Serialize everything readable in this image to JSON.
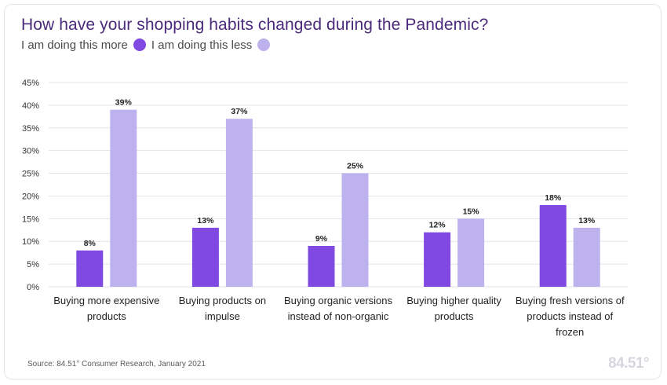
{
  "title": "How have your shopping habits changed during the Pandemic?",
  "legend": {
    "more_label": "I am doing this more",
    "less_label": "I am doing this less"
  },
  "colors": {
    "more": "#8049e2",
    "less": "#bdb2ed",
    "title": "#4b2a7b",
    "grid": "#e3e3e8"
  },
  "source": "Source: 84.51° Consumer Research, January 2021",
  "logo": "84.51°",
  "chart_data": {
    "type": "bar",
    "title": "How have your shopping habits changed during the Pandemic?",
    "categories": [
      [
        "Buying more expensive",
        "products"
      ],
      [
        "Buying products on",
        "impulse"
      ],
      [
        "Buying organic versions",
        "instead of non-organic"
      ],
      [
        "Buying higher quality",
        "products"
      ],
      [
        "Buying fresh versions of",
        "products instead of",
        "frozen"
      ]
    ],
    "series": [
      {
        "name": "I am doing this more",
        "values": [
          8,
          13,
          9,
          12,
          18
        ],
        "color": "#8049e2"
      },
      {
        "name": "I am doing this less",
        "values": [
          39,
          37,
          25,
          15,
          13
        ],
        "color": "#bdb2ed"
      }
    ],
    "yticks": [
      "0%",
      "5%",
      "10%",
      "15%",
      "20%",
      "25%",
      "30%",
      "35%",
      "40%",
      "45%"
    ],
    "ylim": [
      0,
      45
    ],
    "value_suffix": "%",
    "grid": true,
    "legend_position": "top-left"
  }
}
